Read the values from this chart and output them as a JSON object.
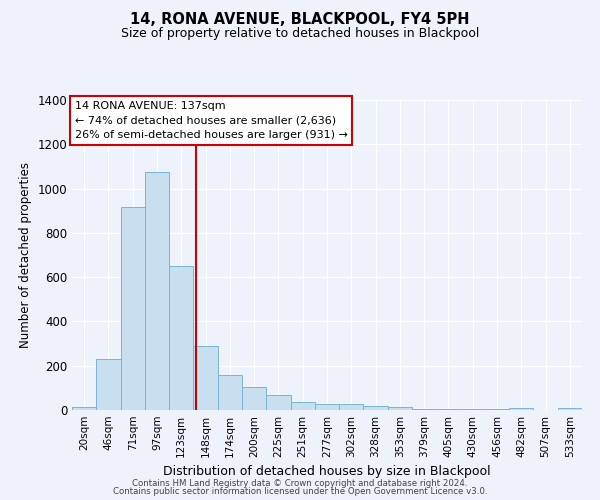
{
  "title": "14, RONA AVENUE, BLACKPOOL, FY4 5PH",
  "subtitle": "Size of property relative to detached houses in Blackpool",
  "xlabel": "Distribution of detached houses by size in Blackpool",
  "ylabel": "Number of detached properties",
  "bin_labels": [
    "20sqm",
    "46sqm",
    "71sqm",
    "97sqm",
    "123sqm",
    "148sqm",
    "174sqm",
    "200sqm",
    "225sqm",
    "251sqm",
    "277sqm",
    "302sqm",
    "328sqm",
    "353sqm",
    "379sqm",
    "405sqm",
    "430sqm",
    "456sqm",
    "482sqm",
    "507sqm",
    "533sqm"
  ],
  "bin_values": [
    15,
    230,
    915,
    1075,
    650,
    290,
    160,
    105,
    70,
    38,
    25,
    25,
    18,
    15,
    5,
    5,
    5,
    5,
    10,
    0,
    8
  ],
  "bar_color": "#c8dff0",
  "bar_edge_color": "#7ab4d4",
  "vline_color": "#cc0000",
  "vline_x_index": 4.62,
  "annotation_title": "14 RONA AVENUE: 137sqm",
  "annotation_line1": "← 74% of detached houses are smaller (2,636)",
  "annotation_line2": "26% of semi-detached houses are larger (931) →",
  "annotation_box_color": "#ffffff",
  "annotation_box_edge": "#cc0000",
  "background_color": "#eef2fb",
  "grid_color": "#ffffff",
  "ylim": [
    0,
    1400
  ],
  "yticks": [
    0,
    200,
    400,
    600,
    800,
    1000,
    1200,
    1400
  ],
  "footer1": "Contains HM Land Registry data © Crown copyright and database right 2024.",
  "footer2": "Contains public sector information licensed under the Open Government Licence v3.0."
}
